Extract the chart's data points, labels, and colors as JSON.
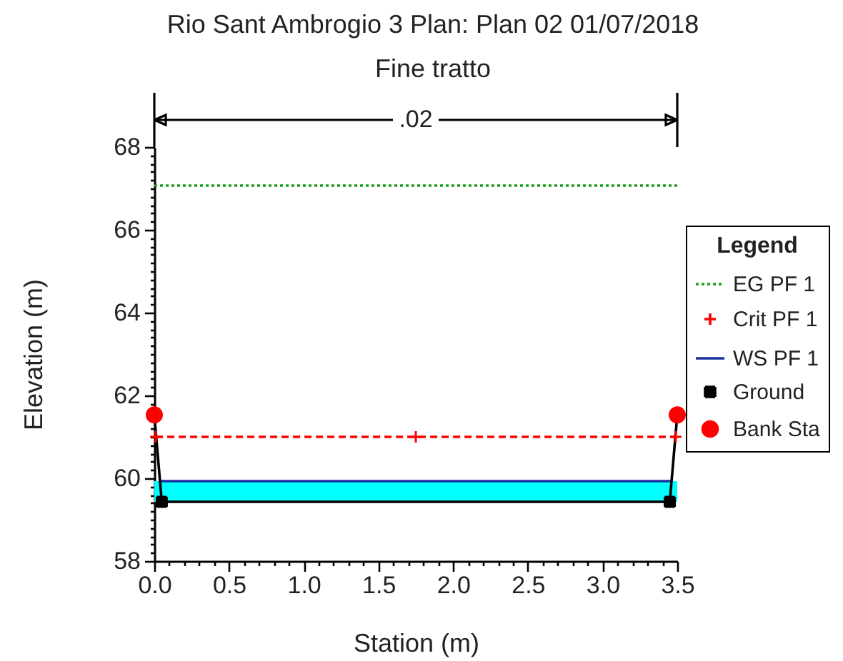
{
  "chart_data": {
    "type": "line",
    "title": "Rio Sant Ambrogio 3     Plan: Plan 02    01/07/2018",
    "subtitle": "Fine tratto",
    "xlabel": "Station (m)",
    "ylabel": "Elevation (m)",
    "legend_title": "Legend",
    "annotations": [
      ".02"
    ],
    "xlim": [
      0,
      3.5
    ],
    "xticks": [
      {
        "value": 0,
        "label": "0.0"
      },
      {
        "value": 0.1,
        "label": null
      },
      {
        "value": 0.2,
        "label": null
      },
      {
        "value": 0.3,
        "label": null
      },
      {
        "value": 0.4,
        "label": null
      },
      0.5,
      {
        "value": 0.6,
        "label": null
      },
      {
        "value": 0.7,
        "label": null
      },
      {
        "value": 0.8,
        "label": null
      },
      {
        "value": 0.9,
        "label": null
      },
      {
        "value": 1,
        "label": "1.0"
      },
      {
        "value": 1.1,
        "label": null
      },
      {
        "value": 1.2,
        "label": null
      },
      {
        "value": 1.3,
        "label": null
      },
      {
        "value": 1.4,
        "label": null
      },
      1.5,
      {
        "value": 1.6,
        "label": null
      },
      {
        "value": 1.7,
        "label": null
      },
      {
        "value": 1.8,
        "label": null
      },
      {
        "value": 1.9,
        "label": null
      },
      {
        "value": 2,
        "label": "2.0"
      },
      {
        "value": 2.1,
        "label": null
      },
      {
        "value": 2.2,
        "label": null
      },
      {
        "value": 2.3,
        "label": null
      },
      {
        "value": 2.4,
        "label": null
      },
      2.5,
      {
        "value": 2.6,
        "label": null
      },
      {
        "value": 2.7,
        "label": null
      },
      {
        "value": 2.8,
        "label": null
      },
      {
        "value": 2.9,
        "label": null
      },
      {
        "value": 3,
        "label": "3.0"
      },
      {
        "value": 3.1,
        "label": null
      },
      {
        "value": 3.2,
        "label": null
      },
      {
        "value": 3.3,
        "label": null
      },
      {
        "value": 3.4,
        "label": null
      },
      3.5
    ],
    "ylim": [
      58,
      68
    ],
    "yticks": [
      58,
      {
        "value": 58.2,
        "label": null
      },
      {
        "value": 58.4,
        "label": null
      },
      {
        "value": 58.6,
        "label": null
      },
      {
        "value": 58.8,
        "label": null
      },
      {
        "value": 59,
        "label": null
      },
      {
        "value": 59.2,
        "label": null
      },
      {
        "value": 59.4,
        "label": null
      },
      {
        "value": 59.6,
        "label": null
      },
      {
        "value": 59.8,
        "label": null
      },
      60,
      {
        "value": 60.2,
        "label": null
      },
      {
        "value": 60.4,
        "label": null
      },
      {
        "value": 60.6,
        "label": null
      },
      {
        "value": 60.8,
        "label": null
      },
      {
        "value": 61,
        "label": null
      },
      {
        "value": 61.2,
        "label": null
      },
      {
        "value": 61.4,
        "label": null
      },
      {
        "value": 61.6,
        "label": null
      },
      {
        "value": 61.8,
        "label": null
      },
      62,
      {
        "value": 62.2,
        "label": null
      },
      {
        "value": 62.4,
        "label": null
      },
      {
        "value": 62.6,
        "label": null
      },
      {
        "value": 62.8,
        "label": null
      },
      {
        "value": 63,
        "label": null
      },
      {
        "value": 63.2,
        "label": null
      },
      {
        "value": 63.4,
        "label": null
      },
      {
        "value": 63.6,
        "label": null
      },
      {
        "value": 63.8,
        "label": null
      },
      64,
      {
        "value": 64.2,
        "label": null
      },
      {
        "value": 64.4,
        "label": null
      },
      {
        "value": 64.6,
        "label": null
      },
      {
        "value": 64.8,
        "label": null
      },
      {
        "value": 65,
        "label": null
      },
      {
        "value": 65.2,
        "label": null
      },
      {
        "value": 65.4,
        "label": null
      },
      {
        "value": 65.6,
        "label": null
      },
      {
        "value": 65.8,
        "label": null
      },
      66,
      {
        "value": 66.2,
        "label": null
      },
      {
        "value": 66.4,
        "label": null
      },
      {
        "value": 66.6,
        "label": null
      },
      {
        "value": 66.8,
        "label": null
      },
      {
        "value": 67,
        "label": null
      },
      {
        "value": 67.2,
        "label": null
      },
      {
        "value": 67.4,
        "label": null
      },
      {
        "value": 67.6,
        "label": null
      },
      {
        "value": 67.8,
        "label": null
      },
      68
    ],
    "bands": [
      {
        "axis": "y",
        "from": 59.43,
        "to": 59.93,
        "color": "#00ffff"
      }
    ],
    "series": [
      {
        "name": "EG PF 1",
        "color": "#1a9e1a",
        "x": [
          0,
          3.5
        ],
        "values": [
          67.07,
          67.07
        ],
        "marker": "none",
        "line_style": "dotted"
      },
      {
        "name": "Crit PF 1",
        "color": "#ff0000",
        "x": [
          0.01,
          1.75,
          3.49
        ],
        "values": [
          61.0,
          61.0,
          61.0
        ],
        "marker": "cross",
        "line_style": "dashed"
      },
      {
        "name": "WS PF 1",
        "color": "#1a2fa0",
        "x": [
          0.04,
          3.46
        ],
        "values": [
          59.93,
          59.93
        ],
        "marker": "none",
        "line_style": "solid"
      },
      {
        "name": "Ground",
        "color": "#000000",
        "x": [
          0,
          0.05,
          3.45,
          3.5
        ],
        "values": [
          61.53,
          59.43,
          59.43,
          61.53
        ],
        "marker": "square",
        "line_style": "solid"
      },
      {
        "name": "Bank Sta",
        "type": "scatter",
        "color": "#ff0000",
        "x": [
          0,
          3.5
        ],
        "values": [
          61.53,
          61.53
        ],
        "marker": "circle"
      }
    ],
    "legend": "right",
    "grid": false
  }
}
